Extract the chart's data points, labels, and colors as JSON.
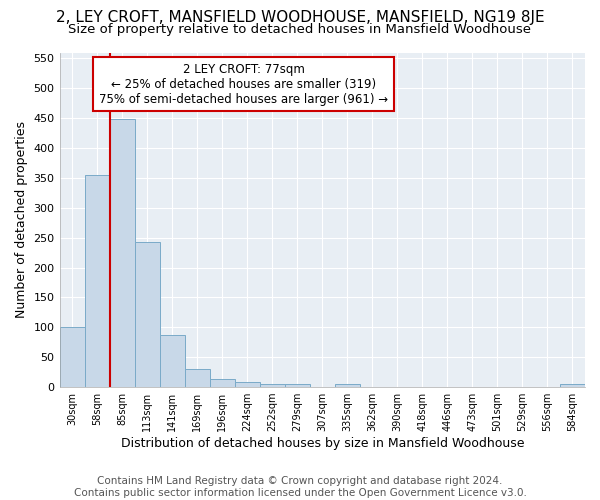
{
  "title_line1": "2, LEY CROFT, MANSFIELD WOODHOUSE, MANSFIELD, NG19 8JE",
  "title_line2": "Size of property relative to detached houses in Mansfield Woodhouse",
  "xlabel": "Distribution of detached houses by size in Mansfield Woodhouse",
  "ylabel": "Number of detached properties",
  "footnote": "Contains HM Land Registry data © Crown copyright and database right 2024.\nContains public sector information licensed under the Open Government Licence v3.0.",
  "bin_labels": [
    "30sqm",
    "58sqm",
    "85sqm",
    "113sqm",
    "141sqm",
    "169sqm",
    "196sqm",
    "224sqm",
    "252sqm",
    "279sqm",
    "307sqm",
    "335sqm",
    "362sqm",
    "390sqm",
    "418sqm",
    "446sqm",
    "473sqm",
    "501sqm",
    "529sqm",
    "556sqm",
    "584sqm"
  ],
  "bar_values": [
    100,
    355,
    448,
    243,
    88,
    30,
    13,
    9,
    5,
    5,
    0,
    5,
    0,
    0,
    0,
    0,
    0,
    0,
    0,
    0,
    5
  ],
  "bar_color": "#c8d8e8",
  "bar_edge_color": "#7aaac8",
  "marker_color": "#cc0000",
  "annotation_line1": "2 LEY CROFT: 77sqm",
  "annotation_line2": "← 25% of detached houses are smaller (319)",
  "annotation_line3": "75% of semi-detached houses are larger (961) →",
  "annotation_box_color": "#ffffff",
  "annotation_box_edge": "#cc0000",
  "vline_x": 1.5,
  "ylim": [
    0,
    560
  ],
  "yticks": [
    0,
    50,
    100,
    150,
    200,
    250,
    300,
    350,
    400,
    450,
    500,
    550
  ],
  "background_color": "#ffffff",
  "plot_bg_color": "#e8eef4",
  "grid_color": "#ffffff",
  "title1_fontsize": 11,
  "title2_fontsize": 9.5,
  "axis_label_fontsize": 9,
  "tick_fontsize": 8,
  "annot_fontsize": 8.5,
  "footnote_fontsize": 7.5
}
